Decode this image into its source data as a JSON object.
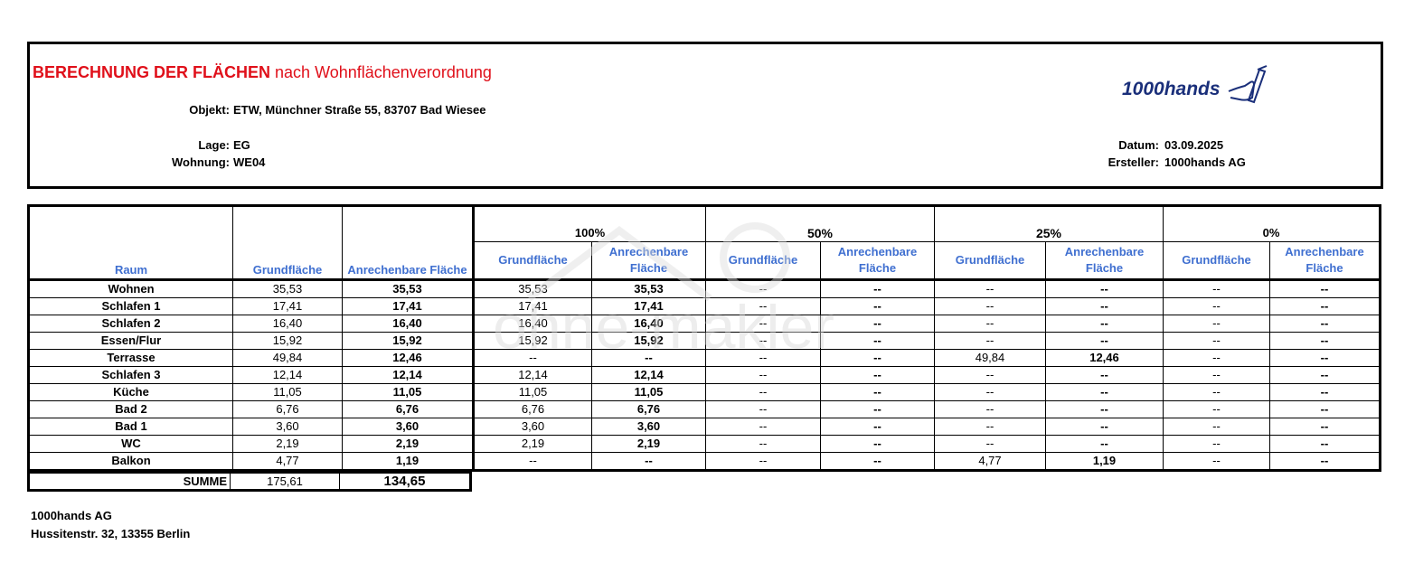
{
  "header": {
    "title_bold": "BERECHNUNG DER FLÄCHEN",
    "title_rest": "nach Wohnflächenverordnung",
    "objekt_label": "Objekt:",
    "objekt": "ETW, Münchner Straße 55, 83707 Bad Wiesee",
    "lage_label": "Lage:",
    "lage": "EG",
    "wohnung_label": "Wohnung:",
    "wohnung": "WE04",
    "datum_label": "Datum:",
    "datum": "03.09.2025",
    "ersteller_label": "Ersteller:",
    "ersteller": "1000hands AG",
    "logo_text": "1000hands",
    "brand_color": "#1a2f7a",
    "title_color": "#e0101a"
  },
  "table": {
    "col_raum": "Raum",
    "col_grund": "Grundfläche",
    "col_anr": "Anrechenbare Fläche",
    "groups": [
      "100%",
      "50%",
      "25%",
      "0%"
    ],
    "sub_grund": "Grundfläche",
    "sub_anr": "Anrechenbare Fläche",
    "header_color": "#3f6fd0",
    "rows": [
      {
        "raum": "Wohnen",
        "grund": "35,53",
        "anr": "35,53",
        "v": [
          "35,53",
          "35,53",
          "--",
          "--",
          "--",
          "--",
          "--",
          "--"
        ]
      },
      {
        "raum": "Schlafen 1",
        "grund": "17,41",
        "anr": "17,41",
        "v": [
          "17,41",
          "17,41",
          "--",
          "--",
          "--",
          "--",
          "--",
          "--"
        ]
      },
      {
        "raum": "Schlafen 2",
        "grund": "16,40",
        "anr": "16,40",
        "v": [
          "16,40",
          "16,40",
          "--",
          "--",
          "--",
          "--",
          "--",
          "--"
        ]
      },
      {
        "raum": "Essen/Flur",
        "grund": "15,92",
        "anr": "15,92",
        "v": [
          "15,92",
          "15,92",
          "--",
          "--",
          "--",
          "--",
          "--",
          "--"
        ]
      },
      {
        "raum": "Terrasse",
        "grund": "49,84",
        "anr": "12,46",
        "v": [
          "--",
          "--",
          "--",
          "--",
          "49,84",
          "12,46",
          "--",
          "--"
        ]
      },
      {
        "raum": "Schlafen 3",
        "grund": "12,14",
        "anr": "12,14",
        "v": [
          "12,14",
          "12,14",
          "--",
          "--",
          "--",
          "--",
          "--",
          "--"
        ]
      },
      {
        "raum": "Küche",
        "grund": "11,05",
        "anr": "11,05",
        "v": [
          "11,05",
          "11,05",
          "--",
          "--",
          "--",
          "--",
          "--",
          "--"
        ]
      },
      {
        "raum": "Bad 2",
        "grund": "6,76",
        "anr": "6,76",
        "v": [
          "6,76",
          "6,76",
          "--",
          "--",
          "--",
          "--",
          "--",
          "--"
        ]
      },
      {
        "raum": "Bad 1",
        "grund": "3,60",
        "anr": "3,60",
        "v": [
          "3,60",
          "3,60",
          "--",
          "--",
          "--",
          "--",
          "--",
          "--"
        ]
      },
      {
        "raum": "WC",
        "grund": "2,19",
        "anr": "2,19",
        "v": [
          "2,19",
          "2,19",
          "--",
          "--",
          "--",
          "--",
          "--",
          "--"
        ]
      },
      {
        "raum": "Balkon",
        "grund": "4,77",
        "anr": "1,19",
        "v": [
          "--",
          "--",
          "--",
          "--",
          "4,77",
          "1,19",
          "--",
          "--"
        ]
      }
    ],
    "summe_label": "SUMME",
    "summe_grund": "175,61",
    "summe_anr": "134,65"
  },
  "watermark": "ohne-makler",
  "footer": {
    "company": "1000hands AG",
    "address": "Hussitenstr. 32, 13355 Berlin"
  }
}
